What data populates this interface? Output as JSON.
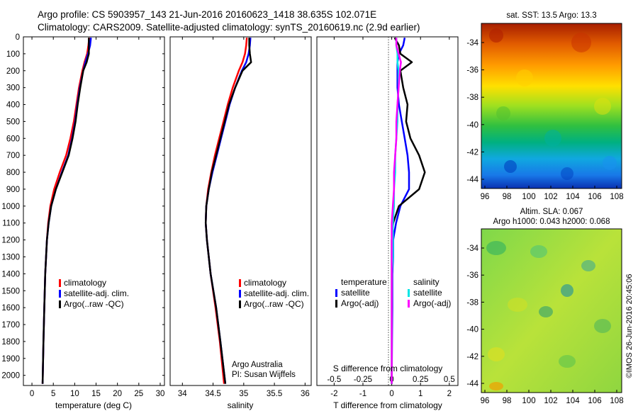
{
  "header": {
    "line1": "Argo profile: CS 5903957_143 21-Jun-2016 20160623_1418 38.635S 102.071E",
    "line2": "Climatology: CARS2009. Satellite-adjusted climatology: synTS_20160619.nc (2.9d earlier)"
  },
  "colors": {
    "climatology": "#ff0000",
    "satellite": "#0000ff",
    "argo": "#000000",
    "sal_satellite": "#00e5e5",
    "sal_argo": "#ff00ff"
  },
  "legend_profiles": [
    "climatology",
    "satellite-adj. clim.",
    "Argo(..raw -QC)"
  ],
  "legend_diff": {
    "temp_header": "temperature",
    "sal_header": "salinity",
    "satellite": "satellite",
    "argo": "Argo(-adj)"
  },
  "credits": {
    "line1": "Argo Australia",
    "line2": "PI: Susan Wijffels"
  },
  "side_text": "©IMOS 26-Jun-2016 20:45:06",
  "maps": {
    "sst_title": "sat. SST: 13.5 Argo: 13.3",
    "sla_title1": "Altim. SLA: 0.067",
    "sla_title2": "Argo h1000: 0.043 h2000: 0.068",
    "x_ticks": [
      "96",
      "98",
      "100",
      "102",
      "104",
      "106",
      "108"
    ],
    "y_ticks": [
      "-34",
      "-36",
      "-38",
      "-40",
      "-42",
      "-44"
    ]
  },
  "chart_data": [
    {
      "type": "line",
      "xlabel": "temperature (deg C)",
      "ylabel": "",
      "xlim": [
        -2,
        31
      ],
      "ylim": [
        2060,
        0
      ],
      "x_ticks": [
        "0",
        "5",
        "10",
        "15",
        "20",
        "25",
        "30"
      ],
      "y_ticks": [
        "0",
        "100",
        "200",
        "300",
        "400",
        "500",
        "600",
        "700",
        "800",
        "900",
        "1000",
        "1100",
        "1200",
        "1300",
        "1400",
        "1500",
        "1600",
        "1700",
        "1800",
        "1900",
        "2000"
      ],
      "depth": [
        5,
        50,
        100,
        150,
        200,
        300,
        400,
        500,
        600,
        700,
        800,
        900,
        1000,
        1100,
        1200,
        1300,
        1400,
        1600,
        1800,
        2050
      ],
      "series": [
        {
          "name": "climatology",
          "values": [
            13.4,
            13.2,
            12.9,
            12.3,
            11.8,
            11.0,
            10.4,
            9.8,
            9.0,
            8.0,
            6.5,
            5.2,
            4.3,
            3.8,
            3.5,
            3.3,
            3.1,
            2.9,
            2.7,
            2.5
          ]
        },
        {
          "name": "satellite-adj. clim.",
          "values": [
            13.8,
            13.6,
            13.1,
            12.5,
            12.0,
            11.2,
            10.6,
            10.1,
            9.4,
            8.5,
            7.0,
            5.6,
            4.5,
            3.9,
            3.5,
            3.3,
            3.1,
            2.9,
            2.7,
            2.5
          ]
        },
        {
          "name": "Argo(..raw -QC)",
          "values": [
            13.3,
            13.3,
            13.3,
            12.8,
            12.0,
            11.3,
            10.7,
            10.2,
            9.5,
            8.6,
            7.1,
            5.6,
            4.5,
            3.9,
            3.5,
            3.3,
            3.1,
            2.9,
            2.7,
            2.5
          ]
        }
      ]
    },
    {
      "type": "line",
      "xlabel": "salinity",
      "ylabel": "",
      "xlim": [
        33.8,
        36.1
      ],
      "ylim": [
        2060,
        0
      ],
      "x_ticks": [
        "34",
        "34.5",
        "35",
        "35.5",
        "36"
      ],
      "depth": [
        5,
        50,
        100,
        150,
        200,
        300,
        400,
        500,
        600,
        700,
        800,
        900,
        1000,
        1100,
        1200,
        1300,
        1400,
        1600,
        1800,
        2050
      ],
      "series": [
        {
          "name": "climatology",
          "values": [
            35.05,
            35.04,
            35.02,
            34.98,
            34.92,
            34.82,
            34.74,
            34.67,
            34.6,
            34.53,
            34.47,
            34.42,
            34.39,
            34.38,
            34.4,
            34.43,
            34.46,
            34.54,
            34.61,
            34.68
          ]
        },
        {
          "name": "satellite-adj. clim.",
          "values": [
            35.11,
            35.1,
            35.08,
            35.04,
            34.97,
            34.86,
            34.77,
            34.7,
            34.63,
            34.56,
            34.49,
            34.43,
            34.39,
            34.38,
            34.4,
            34.43,
            34.46,
            34.55,
            34.62,
            34.7
          ]
        },
        {
          "name": "Argo(..raw -QC)",
          "values": [
            35.09,
            35.09,
            35.1,
            35.12,
            34.98,
            34.86,
            34.76,
            34.69,
            34.62,
            34.55,
            34.48,
            34.43,
            34.39,
            34.38,
            34.4,
            34.43,
            34.46,
            34.55,
            34.62,
            34.7
          ]
        }
      ]
    },
    {
      "type": "line",
      "xlabel": "T difference from climatology",
      "xlabel_top": "S difference from climatology",
      "xlim": [
        -2.6,
        2.3
      ],
      "ylim": [
        2060,
        0
      ],
      "x_ticks": [
        "-2",
        "-1",
        "0",
        "1",
        "2"
      ],
      "x_ticks_top": [
        "-0.5",
        "-0.25",
        "0",
        "0.25",
        "0.5"
      ],
      "depth": [
        5,
        50,
        100,
        150,
        200,
        300,
        400,
        500,
        600,
        700,
        800,
        900,
        1000,
        1100,
        1200,
        1300,
        1400,
        1600,
        1800,
        2050
      ],
      "series": [
        {
          "name": "temperature satellite",
          "values": [
            0.45,
            0.4,
            0.25,
            0.2,
            0.2,
            0.2,
            0.25,
            0.35,
            0.45,
            0.55,
            0.6,
            0.6,
            0.3,
            0.15,
            0.05,
            0.05,
            0.02,
            0.02,
            0.01,
            0.0
          ]
        },
        {
          "name": "temperature Argo(-adj)",
          "values": [
            0.1,
            0.25,
            0.3,
            0.7,
            0.3,
            0.4,
            0.55,
            0.5,
            0.65,
            0.95,
            1.15,
            0.95,
            0.25,
            0.05,
            0.0,
            0.0,
            0.0,
            0.0,
            0.0,
            0.0
          ]
        },
        {
          "name": "salinity satellite",
          "values": [
            0.04,
            0.04,
            0.05,
            0.05,
            0.06,
            0.06,
            0.05,
            0.05,
            0.04,
            0.03,
            0.03,
            0.02,
            0.02,
            0.01,
            0.01,
            0.01,
            0.0,
            0.0,
            0.0,
            0.0
          ]
        },
        {
          "name": "salinity Argo(-adj)",
          "values": [
            0.04,
            0.04,
            0.06,
            0.08,
            0.07,
            0.06,
            0.05,
            0.04,
            0.04,
            0.03,
            0.02,
            0.02,
            0.01,
            0.0,
            0.0,
            0.0,
            0.0,
            0.0,
            0.0,
            0.0
          ]
        }
      ]
    }
  ]
}
